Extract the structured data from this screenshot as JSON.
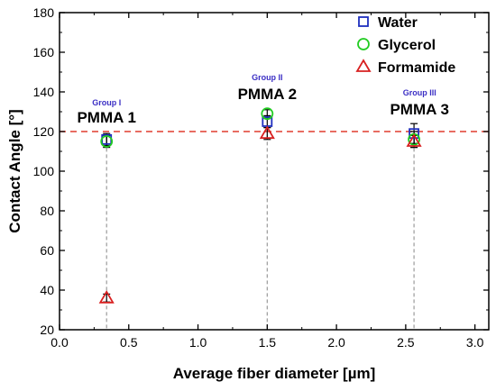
{
  "chart_data": {
    "type": "scatter",
    "xlabel": "Average fiber diameter [µm]",
    "ylabel": "Contact Angle [°]",
    "xlim": [
      0.0,
      3.1
    ],
    "ylim": [
      20,
      180
    ],
    "xticks": [
      "0.0",
      "0.5",
      "1.0",
      "1.5",
      "2.0",
      "2.5",
      "3.0"
    ],
    "yticks": [
      "20",
      "40",
      "60",
      "80",
      "100",
      "120",
      "140",
      "160",
      "180"
    ],
    "grid": false,
    "legend_position": "top-right",
    "reference_line": {
      "y": 120,
      "style": "dashed",
      "color": "#e03c2e"
    },
    "groups": [
      {
        "group": "Group I",
        "sample": "PMMA 1",
        "x": 0.34
      },
      {
        "group": "Group II",
        "sample": "PMMA 2",
        "x": 1.5
      },
      {
        "group": "Group III",
        "sample": "PMMA 3",
        "x": 2.56
      }
    ],
    "series": [
      {
        "name": "Water",
        "marker": "square",
        "color": "#1f2fbf",
        "points": [
          {
            "x": 0.34,
            "y": 116,
            "err": 3
          },
          {
            "x": 1.5,
            "y": 125,
            "err": 3
          },
          {
            "x": 2.56,
            "y": 119,
            "err": 5
          }
        ]
      },
      {
        "name": "Glycerol",
        "marker": "circle",
        "color": "#22cc22",
        "points": [
          {
            "x": 0.34,
            "y": 115,
            "err": 3
          },
          {
            "x": 1.5,
            "y": 129,
            "err": 2
          },
          {
            "x": 2.56,
            "y": 116,
            "err": 4
          }
        ]
      },
      {
        "name": "Formamide",
        "marker": "triangle",
        "color": "#d82020",
        "points": [
          {
            "x": 0.34,
            "y": 36,
            "err": 2
          },
          {
            "x": 1.5,
            "y": 119,
            "err": 3
          },
          {
            "x": 2.56,
            "y": 115,
            "err": 3
          }
        ]
      }
    ]
  },
  "colors": {
    "group_label": "#3b2fc4",
    "dropline": "#9a9a9a"
  }
}
